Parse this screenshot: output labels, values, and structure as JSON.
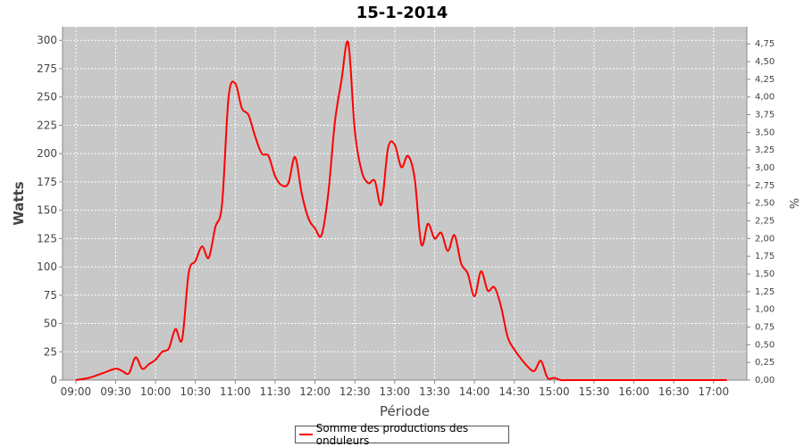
{
  "chart_data": {
    "type": "line",
    "title": "15-1-2014",
    "xlabel": "Période",
    "ylabel": "Watts",
    "y2label": "%",
    "ylim": [
      0,
      312
    ],
    "y2lim": [
      0,
      4.992
    ],
    "yticks": [
      0,
      25,
      50,
      75,
      100,
      125,
      150,
      175,
      200,
      225,
      250,
      275,
      300
    ],
    "y2ticks": [
      "0,00",
      "0,25",
      "0,50",
      "0,75",
      "1,00",
      "1,25",
      "1,50",
      "1,75",
      "2,00",
      "2,25",
      "2,50",
      "2,75",
      "3,00",
      "3,25",
      "3,50",
      "3,75",
      "4,00",
      "4,25",
      "4,50",
      "4,75"
    ],
    "xticks": [
      "09:00",
      "09:30",
      "10:00",
      "10:30",
      "11:00",
      "11:30",
      "12:00",
      "12:30",
      "13:00",
      "13:30",
      "14:00",
      "14:30",
      "15:00",
      "15:30",
      "16:00",
      "16:30",
      "17:00"
    ],
    "grid": true,
    "legend_position": "bottom",
    "plot_background": "#c8c8c8",
    "series": [
      {
        "name": "Somme des productions des onduleurs",
        "color": "#ff0000",
        "x": [
          "09:00",
          "09:10",
          "09:20",
          "09:30",
          "09:35",
          "09:40",
          "09:45",
          "09:50",
          "09:55",
          "10:00",
          "10:05",
          "10:10",
          "10:15",
          "10:20",
          "10:25",
          "10:30",
          "10:35",
          "10:40",
          "10:45",
          "10:50",
          "10:55",
          "11:00",
          "11:05",
          "11:10",
          "11:15",
          "11:20",
          "11:25",
          "11:30",
          "11:35",
          "11:40",
          "11:45",
          "11:50",
          "11:55",
          "12:00",
          "12:05",
          "12:10",
          "12:15",
          "12:20",
          "12:25",
          "12:30",
          "12:35",
          "12:40",
          "12:45",
          "12:50",
          "12:55",
          "13:00",
          "13:05",
          "13:10",
          "13:15",
          "13:20",
          "13:25",
          "13:30",
          "13:35",
          "13:40",
          "13:45",
          "13:50",
          "13:55",
          "14:00",
          "14:05",
          "14:10",
          "14:15",
          "14:20",
          "14:25",
          "14:30",
          "14:35",
          "14:40",
          "14:45",
          "14:50",
          "14:55",
          "15:00",
          "15:05",
          "15:10",
          "15:15",
          "15:20",
          "15:25",
          "15:30",
          "15:35",
          "15:40",
          "15:45",
          "15:50",
          "15:55",
          "16:00",
          "16:05",
          "16:10",
          "16:15",
          "16:20",
          "16:30",
          "16:40",
          "17:00",
          "17:10"
        ],
        "values": [
          0,
          2,
          6,
          10,
          8,
          6,
          20,
          10,
          14,
          18,
          25,
          28,
          45,
          36,
          95,
          105,
          118,
          108,
          135,
          155,
          250,
          262,
          240,
          234,
          215,
          200,
          198,
          180,
          172,
          174,
          197,
          165,
          143,
          134,
          128,
          165,
          228,
          265,
          298,
          220,
          185,
          174,
          176,
          155,
          205,
          208,
          188,
          198,
          178,
          120,
          138,
          125,
          130,
          114,
          128,
          103,
          94,
          74,
          96,
          79,
          82,
          65,
          38,
          27,
          19,
          12,
          8,
          17,
          2,
          2,
          0,
          0,
          0,
          0,
          0,
          0,
          0,
          0,
          0,
          0,
          0,
          0,
          0,
          0,
          0,
          0,
          0,
          0,
          0,
          0
        ]
      }
    ]
  }
}
